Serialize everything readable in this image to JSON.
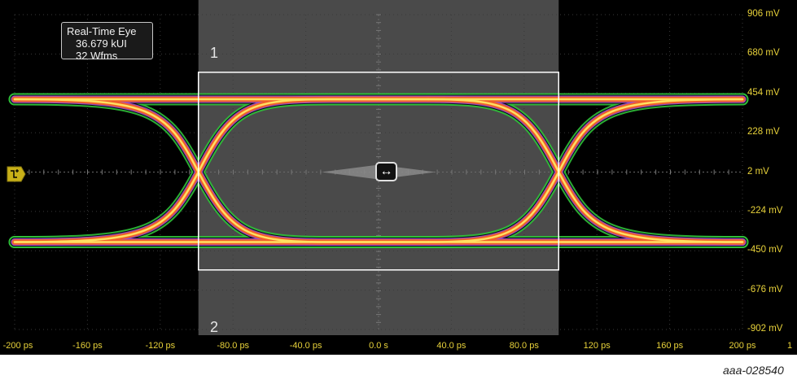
{
  "info_box": {
    "title": "Real-Time Eye",
    "count": "36.679 kUI",
    "waveforms": "32 Wfms"
  },
  "cursors": {
    "left_label": "1",
    "right_label": "2"
  },
  "channel_marker": "1",
  "figure_id": "aaa-028540",
  "colors": {
    "background": "#000000",
    "label": "#e8d23a",
    "window_shade": "#4a4a4a",
    "trace_core": "#ffe060",
    "trace_mid": "#f0602a",
    "trace_purple": "#a050d0",
    "trace_outer": "#2fbf3a"
  },
  "chart_data": {
    "type": "eye-diagram",
    "title": "Real-Time Eye",
    "xlabel": "",
    "ylabel": "",
    "x_ticks": [
      "-200 ps",
      "-160 ps",
      "-120 ps",
      "-80.0 ps",
      "-40.0 ps",
      "0.0 s",
      "40.0 ps",
      "80.0 ps",
      "120 ps",
      "160 ps",
      "200 ps"
    ],
    "y_ticks": [
      "906 mV",
      "680 mV",
      "454 mV",
      "228 mV",
      "2 mV",
      "-224 mV",
      "-450 mV",
      "-676 mV",
      "-902 mV"
    ],
    "xlim_ps": [
      -200,
      200
    ],
    "ylim_mV": [
      -902,
      906
    ],
    "high_level_mV": 420,
    "low_level_mV": -400,
    "crossings_ps": [
      -99,
      99
    ],
    "crossing_level_mV": 2,
    "measurement_window_ps": [
      -99,
      99
    ],
    "measurement_window_mV": [
      -560,
      575
    ],
    "shaded_region_ps": [
      -99,
      99
    ],
    "grid": true
  }
}
